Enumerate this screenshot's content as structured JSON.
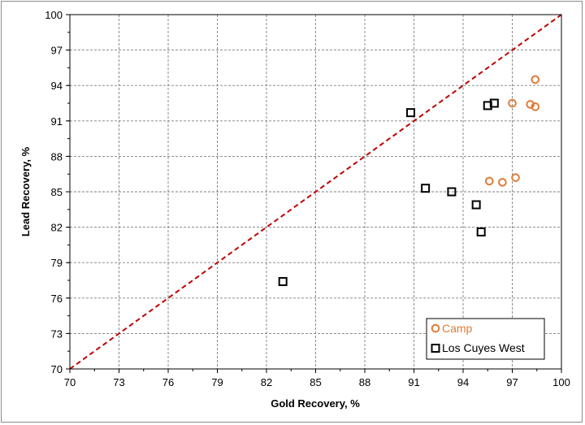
{
  "chart_data": {
    "type": "scatter",
    "title": "",
    "xlabel": "Gold Recovery, %",
    "ylabel": "Lead Recovery, %",
    "xlim": [
      70,
      100
    ],
    "ylim": [
      70,
      100
    ],
    "x_ticks": [
      "70",
      "73",
      "76",
      "79",
      "82",
      "85",
      "88",
      "91",
      "94",
      "97",
      "100"
    ],
    "y_ticks": [
      "70",
      "73",
      "76",
      "79",
      "82",
      "85",
      "88",
      "91",
      "94",
      "97",
      "100"
    ],
    "grid": true,
    "legend_position": "bottom-right",
    "reference_line": {
      "style": "dashed",
      "color": "#c00000",
      "x": [
        70,
        100
      ],
      "y": [
        70,
        100
      ]
    },
    "series": [
      {
        "name": "Camp",
        "marker": "circle",
        "color": "#e07b39",
        "points": [
          {
            "x": 98.4,
            "y": 94.5
          },
          {
            "x": 97.0,
            "y": 92.5
          },
          {
            "x": 98.1,
            "y": 92.4
          },
          {
            "x": 98.4,
            "y": 92.2
          },
          {
            "x": 95.6,
            "y": 85.9
          },
          {
            "x": 96.4,
            "y": 85.8
          },
          {
            "x": 97.2,
            "y": 86.2
          }
        ]
      },
      {
        "name": "Los Cuyes West",
        "marker": "square",
        "color": "#000000",
        "points": [
          {
            "x": 90.8,
            "y": 91.7
          },
          {
            "x": 95.9,
            "y": 92.5
          },
          {
            "x": 95.5,
            "y": 92.3
          },
          {
            "x": 91.7,
            "y": 85.3
          },
          {
            "x": 93.3,
            "y": 85.0
          },
          {
            "x": 94.8,
            "y": 83.9
          },
          {
            "x": 95.1,
            "y": 81.6
          },
          {
            "x": 83.0,
            "y": 77.4
          }
        ]
      }
    ]
  }
}
